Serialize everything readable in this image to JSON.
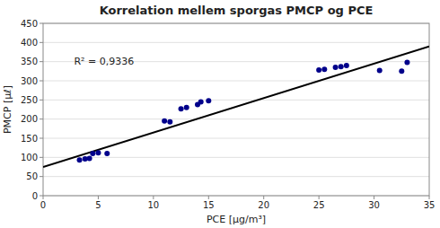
{
  "chart_data": {
    "type": "scatter",
    "title": "Korrelation mellem sporgas PMCP og PCE",
    "xlabel": "PCE [µg/m³]",
    "ylabel": "PMCP [µℓ]",
    "annotation": "R² = 0,9336",
    "series": [
      {
        "type": "scatter",
        "color": "#00008B",
        "x": [
          3.3,
          3.8,
          4.2,
          4.5,
          5.0,
          5.8,
          11.0,
          11.5,
          12.5,
          13.0,
          14.0,
          14.3,
          15.0,
          25.0,
          25.5,
          26.5,
          27.0,
          27.5,
          30.5,
          32.5,
          33.0
        ],
        "values": [
          93,
          96,
          97,
          110,
          112,
          110,
          195,
          193,
          227,
          230,
          238,
          245,
          248,
          328,
          330,
          335,
          337,
          340,
          327,
          325,
          348
        ]
      },
      {
        "type": "line",
        "color": "#000000",
        "x": [
          0,
          35
        ],
        "values": [
          75,
          390
        ]
      }
    ],
    "xlim": [
      0,
      35
    ],
    "ylim": [
      0,
      450
    ],
    "xticks": [
      0,
      5,
      10,
      15,
      20,
      25,
      30,
      35
    ],
    "yticks": [
      0,
      50,
      100,
      150,
      200,
      250,
      300,
      350,
      400,
      450
    ],
    "grid": true
  }
}
